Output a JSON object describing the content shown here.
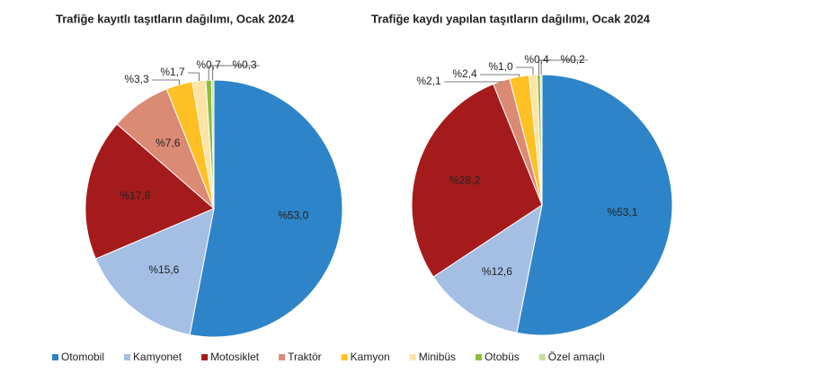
{
  "chart_data": [
    {
      "type": "pie",
      "title": "Trafiğe kayıtlı taşıtların dağılımı, Ocak 2024",
      "categories": [
        "Otomobil",
        "Kamyonet",
        "Motosiklet",
        "Traktör",
        "Kamyon",
        "Minibüs",
        "Otobüs",
        "Özel amaçlı"
      ],
      "values": [
        53.0,
        15.6,
        17.8,
        7.6,
        3.3,
        1.7,
        0.7,
        0.3
      ],
      "value_labels": [
        "%53,0",
        "%15,6",
        "%17,8",
        "%7,6",
        "%3,3",
        "%1,7",
        "%0,7",
        "%0,3"
      ],
      "colors": [
        "#2e84c8",
        "#a4bfe3",
        "#a51b1b",
        "#db8a74",
        "#ffc024",
        "#fde3a4",
        "#8cbd3c",
        "#c7dea2"
      ]
    },
    {
      "type": "pie",
      "title": "Trafiğe kaydı yapılan taşıtların dağılımı, Ocak 2024",
      "categories": [
        "Otomobil",
        "Kamyonet",
        "Motosiklet",
        "Traktör",
        "Kamyon",
        "Minibüs",
        "Otobüs",
        "Özel amaçlı"
      ],
      "values": [
        53.1,
        12.6,
        28.2,
        2.1,
        2.4,
        1.0,
        0.4,
        0.2
      ],
      "value_labels": [
        "%53,1",
        "%12,6",
        "%28,2",
        "%2,1",
        "%2,4",
        "%1,0",
        "%0,4",
        "%0,2"
      ],
      "colors": [
        "#2e84c8",
        "#a4bfe3",
        "#a51b1b",
        "#db8a74",
        "#ffc024",
        "#fde3a4",
        "#8cbd3c",
        "#c7dea2"
      ]
    }
  ]
}
